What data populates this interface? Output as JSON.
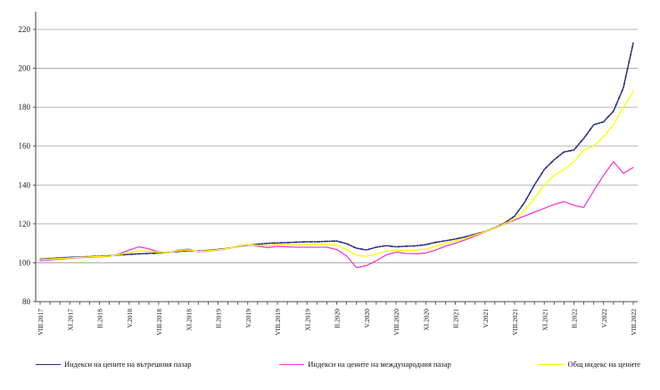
{
  "chart_data": {
    "type": "line",
    "title": "",
    "xlabel": "",
    "ylabel": "",
    "ylim": [
      80,
      220
    ],
    "y_ticks": [
      80,
      100,
      120,
      140,
      160,
      180,
      200,
      220
    ],
    "grid": "horizontal",
    "legend_position": "bottom",
    "months_total": 61,
    "x_label_every": 3,
    "x_tick_labels": [
      "VIII.2017",
      "XI.2017",
      "II.2018",
      "V.2018",
      "VIII.2018",
      "XI.2018",
      "II.2019",
      "V.2019",
      "VIII.2019",
      "XI.2019",
      "II.2020",
      "V.2020",
      "VIII.2020",
      "XI.2020",
      "II.2021",
      "V.2021",
      "VIII.2021",
      "XI.2021",
      "II.2022",
      "V.2022",
      "VIII.2022"
    ],
    "series": [
      {
        "name": "Индекси на цените на вътрешния пазар",
        "color": "#28287d",
        "line_style": "dash-dot",
        "values": [
          101.8,
          102.2,
          102.5,
          102.8,
          103.0,
          103.2,
          103.4,
          103.6,
          104.0,
          104.3,
          104.6,
          104.8,
          105.0,
          105.3,
          105.8,
          106.2,
          106.0,
          106.4,
          106.9,
          107.4,
          108.4,
          109.0,
          109.5,
          110.0,
          110.2,
          110.4,
          110.6,
          110.8,
          110.8,
          111.0,
          111.2,
          109.8,
          107.5,
          106.6,
          108.0,
          108.8,
          108.2,
          108.5,
          108.7,
          109.3,
          110.5,
          111.3,
          112.2,
          113.3,
          114.7,
          116.0,
          118.0,
          120.5,
          124.0,
          131.0,
          140.0,
          148.0,
          153.0,
          157.0,
          158.0,
          164.0,
          171.0,
          172.5,
          178.0,
          190.0,
          213.0
        ]
      },
      {
        "name": "Индекси на цените на международния пазар",
        "color": "#f23dd0",
        "line_style": "solid",
        "values": [
          101.0,
          101.5,
          101.9,
          102.3,
          102.6,
          102.8,
          103.0,
          103.3,
          104.5,
          106.5,
          108.2,
          107.2,
          105.5,
          105.2,
          106.5,
          107.0,
          105.6,
          106.0,
          106.5,
          107.2,
          108.6,
          109.3,
          108.5,
          107.8,
          108.4,
          108.2,
          108.0,
          108.0,
          108.0,
          108.0,
          106.8,
          103.5,
          97.5,
          98.5,
          101.0,
          104.0,
          105.5,
          104.8,
          104.6,
          105.0,
          106.5,
          108.5,
          110.0,
          111.8,
          113.8,
          115.8,
          117.8,
          120.0,
          122.0,
          124.0,
          126.0,
          128.0,
          130.0,
          131.5,
          129.5,
          128.5,
          137.0,
          145.0,
          152.0,
          146.0,
          149.0
        ]
      },
      {
        "name": "Общ индекс на цените",
        "color": "#ffff00",
        "line_style": "solid",
        "values": [
          101.5,
          101.9,
          102.2,
          102.5,
          102.8,
          103.0,
          103.2,
          103.4,
          104.2,
          105.2,
          106.2,
          105.9,
          105.3,
          105.2,
          106.2,
          106.6,
          105.8,
          106.2,
          106.7,
          107.3,
          108.5,
          109.2,
          109.0,
          108.8,
          109.3,
          109.4,
          109.3,
          109.4,
          109.4,
          109.5,
          109.0,
          106.8,
          103.8,
          103.3,
          104.5,
          106.0,
          106.5,
          106.3,
          106.5,
          107.0,
          108.5,
          110.0,
          111.2,
          112.6,
          114.3,
          115.9,
          117.9,
          120.2,
          122.5,
          127.0,
          133.0,
          140.0,
          145.0,
          148.0,
          152.0,
          158.0,
          160.0,
          165.0,
          171.0,
          180.0,
          188.0
        ]
      }
    ]
  }
}
